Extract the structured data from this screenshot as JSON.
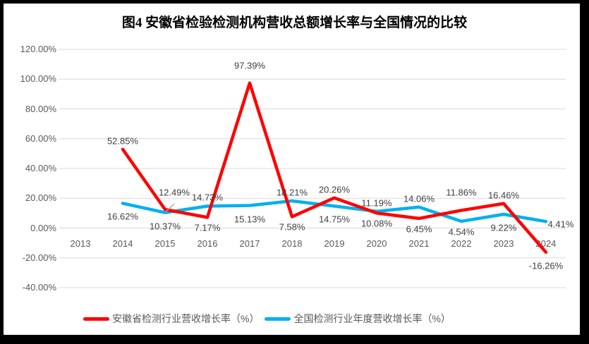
{
  "title": "图4 安徽省检验检测机构营收总额增长率与全国情况的比较",
  "colors": {
    "anhui_series": "#FF0000",
    "national_series": "#00B0F0",
    "gridline": "#D9D9D9",
    "axis_text": "#595959",
    "data_label_text": "#404040",
    "leader_line": "#A6A6A6",
    "frame": "#000000",
    "background": "#FFFFFF"
  },
  "chart_data": {
    "type": "line",
    "title": "图4 安徽省检验检测机构营收总额增长率与全国情况的比较",
    "categories": [
      "2013",
      "2014",
      "2015",
      "2016",
      "2017",
      "2018",
      "2019",
      "2020",
      "2021",
      "2022",
      "2023",
      "2024"
    ],
    "series": [
      {
        "key": "anhui",
        "name": "安徽省检测行业营收增长率（%）",
        "color": "#FF0000",
        "values": [
          null,
          52.85,
          12.49,
          7.17,
          97.39,
          7.58,
          20.26,
          10.08,
          6.45,
          11.86,
          16.46,
          -16.26
        ],
        "label_positions": [
          null,
          "above",
          "leader-right",
          "below",
          "above-far",
          "below",
          "above",
          "below",
          "below",
          "above-far",
          "above",
          "below-far"
        ]
      },
      {
        "key": "national",
        "name": "全国检测行业年度营收增长率（%）",
        "color": "#00B0F0",
        "values": [
          null,
          16.62,
          10.37,
          14.73,
          15.13,
          18.21,
          14.75,
          11.19,
          14.06,
          4.54,
          9.22,
          4.41
        ],
        "label_positions": [
          null,
          "below-far",
          "below-far",
          "above",
          "below-far",
          "above",
          "below-far",
          "above",
          "above",
          "below",
          "below-far",
          "right"
        ]
      }
    ],
    "y_axis": {
      "tick_labels": [
        "120.00%",
        "100.00%",
        "80.00%",
        "60.00%",
        "40.00%",
        "20.00%",
        "0.00%",
        "-20.00%",
        "-40.00%"
      ],
      "tick_values": [
        120,
        100,
        80,
        60,
        40,
        20,
        0,
        -20,
        -40
      ],
      "min": -40,
      "max": 120
    },
    "grid": true,
    "legend_position": "bottom",
    "label_format": "{value:.2f}%"
  }
}
